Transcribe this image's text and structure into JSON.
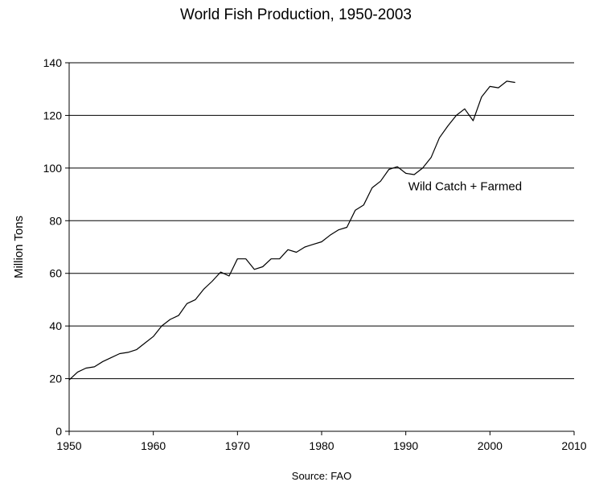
{
  "chart_data": {
    "type": "line",
    "title": "World Fish Production, 1950-2003",
    "xlabel": "",
    "ylabel": "Million Tons",
    "source": "Source: FAO",
    "xlim": [
      1950,
      2010
    ],
    "ylim": [
      0,
      140
    ],
    "x_ticks": [
      1950,
      1960,
      1970,
      1980,
      1990,
      2000,
      2010
    ],
    "y_ticks": [
      0,
      20,
      40,
      60,
      80,
      100,
      120,
      140
    ],
    "grid": "horizontal",
    "series": [
      {
        "name": "Wild Catch + Farmed",
        "color": "#000000",
        "x": [
          1950,
          1951,
          1952,
          1953,
          1954,
          1955,
          1956,
          1957,
          1958,
          1959,
          1960,
          1961,
          1962,
          1963,
          1964,
          1965,
          1966,
          1967,
          1968,
          1969,
          1970,
          1971,
          1972,
          1973,
          1974,
          1975,
          1976,
          1977,
          1978,
          1979,
          1980,
          1981,
          1982,
          1983,
          1984,
          1985,
          1986,
          1987,
          1988,
          1989,
          1990,
          1991,
          1992,
          1993,
          1994,
          1995,
          1996,
          1997,
          1998,
          1999,
          2000,
          2001,
          2002,
          2003
        ],
        "y": [
          19.5,
          22.5,
          24,
          24.5,
          26.5,
          28,
          29.5,
          30,
          31,
          33.5,
          36,
          40,
          42.5,
          44,
          48.5,
          50,
          54,
          57,
          60.5,
          59,
          65.5,
          65.5,
          61.5,
          62.5,
          65.5,
          65.5,
          69,
          68,
          70,
          71,
          72,
          74.5,
          76.5,
          77.5,
          84,
          86,
          92.5,
          95,
          99.5,
          100.5,
          98,
          97.5,
          100,
          104,
          111.5,
          116,
          120,
          122.5,
          118,
          127,
          131,
          130.5,
          133,
          132.5
        ]
      }
    ],
    "annotations": [
      {
        "text": "Wild Catch + Farmed",
        "x": 1990.3,
        "y": 91.5
      }
    ]
  }
}
